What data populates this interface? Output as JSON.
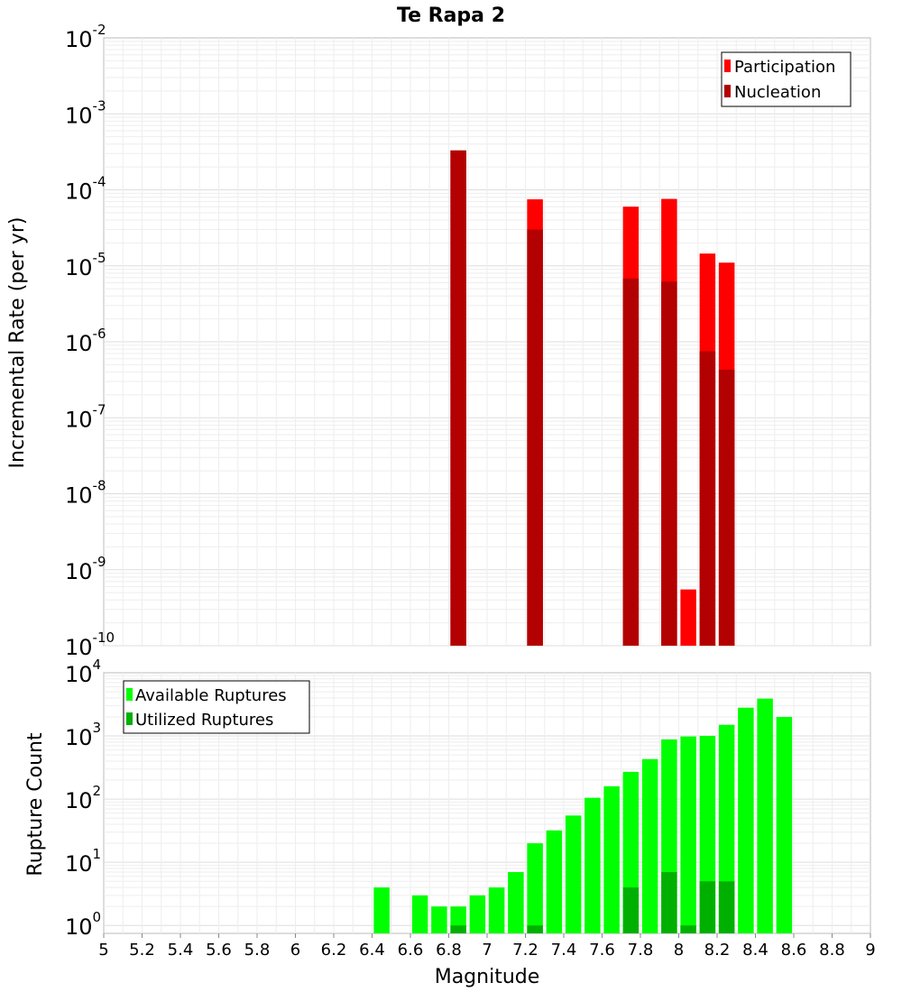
{
  "chart_data": [
    {
      "type": "bar",
      "title": "Te Rapa 2",
      "ylabel": "Incremental Rate (per yr)",
      "yscale": "log",
      "ylim": [
        1e-10,
        0.01
      ],
      "y_ticks": [
        {
          "base": "10",
          "exp": "-10"
        },
        {
          "base": "10",
          "exp": "-9"
        },
        {
          "base": "10",
          "exp": "-8"
        },
        {
          "base": "10",
          "exp": "-7"
        },
        {
          "base": "10",
          "exp": "-6"
        },
        {
          "base": "10",
          "exp": "-5"
        },
        {
          "base": "10",
          "exp": "-4"
        },
        {
          "base": "10",
          "exp": "-3"
        },
        {
          "base": "10",
          "exp": "-2"
        }
      ],
      "xlim": [
        5,
        9
      ],
      "grid": true,
      "legend_position": "top-right",
      "series": [
        {
          "name": "Participation",
          "color": "#ff0000",
          "x": [
            6.85,
            7.25,
            7.75,
            7.95,
            8.05,
            8.15,
            8.25
          ],
          "values": [
            0.00033,
            7.5e-05,
            6e-05,
            7.6e-05,
            5.5e-10,
            1.45e-05,
            1.1e-05
          ]
        },
        {
          "name": "Nucleation",
          "color": "#b30000",
          "x": [
            6.85,
            7.25,
            7.75,
            7.95,
            8.15,
            8.25
          ],
          "values": [
            0.00033,
            3e-05,
            6.8e-06,
            6.2e-06,
            7.5e-07,
            4.3e-07
          ]
        }
      ]
    },
    {
      "type": "bar",
      "ylabel": "Rupture Count",
      "xlabel": "Magnitude",
      "yscale": "log",
      "ylim": [
        0.75,
        10000
      ],
      "y_ticks": [
        {
          "base": "10",
          "exp": "0"
        },
        {
          "base": "10",
          "exp": "1"
        },
        {
          "base": "10",
          "exp": "2"
        },
        {
          "base": "10",
          "exp": "3"
        },
        {
          "base": "10",
          "exp": "4"
        }
      ],
      "xlim": [
        5,
        9
      ],
      "x_ticks": [
        "5",
        "5.2",
        "5.4",
        "5.6",
        "5.8",
        "6",
        "6.2",
        "6.4",
        "6.6",
        "6.8",
        "7",
        "7.2",
        "7.4",
        "7.6",
        "7.8",
        "8",
        "8.2",
        "8.4",
        "8.6",
        "8.8",
        "9"
      ],
      "grid": true,
      "legend_position": "top-left",
      "series": [
        {
          "name": "Available Ruptures",
          "color": "#00ff00",
          "x": [
            6.45,
            6.65,
            6.75,
            6.85,
            6.95,
            7.05,
            7.15,
            7.25,
            7.35,
            7.45,
            7.55,
            7.65,
            7.75,
            7.85,
            7.95,
            8.05,
            8.15,
            8.25,
            8.35,
            8.45,
            8.55
          ],
          "values": [
            4,
            3,
            2,
            2,
            3,
            4,
            7,
            20,
            32,
            55,
            105,
            160,
            270,
            430,
            880,
            980,
            1000,
            1500,
            2800,
            3900,
            2000
          ]
        },
        {
          "name": "Utilized Ruptures",
          "color": "#00b000",
          "x": [
            6.85,
            7.25,
            7.75,
            7.95,
            8.05,
            8.15,
            8.25
          ],
          "values": [
            1,
            1,
            4,
            7,
            1,
            5,
            5
          ]
        }
      ]
    }
  ]
}
